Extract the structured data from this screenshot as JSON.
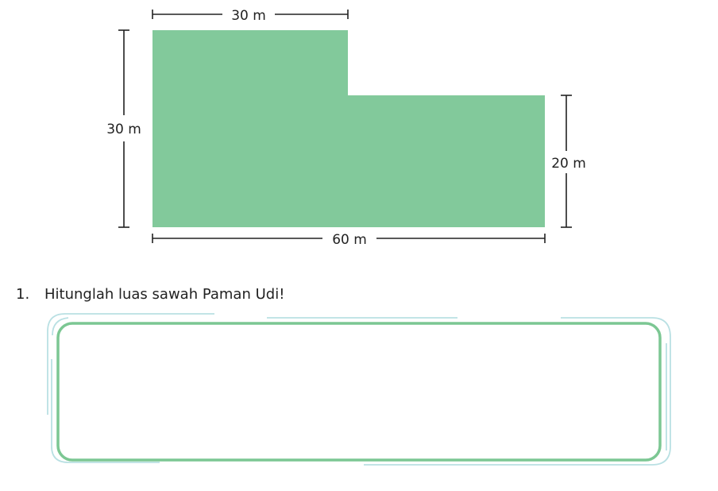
{
  "figure": {
    "shape_color": "#82c99b",
    "line_color": "#222222",
    "dimensions": {
      "top": "30 m",
      "left": "30 m",
      "right": "20 m",
      "bottom": "60 m"
    }
  },
  "question": {
    "number": "1.",
    "text": "Hitunglah luas sawah Paman Udi!"
  },
  "answer_box": {
    "border_color": "#7cc793",
    "outer_line_color": "#b9e0e3"
  }
}
